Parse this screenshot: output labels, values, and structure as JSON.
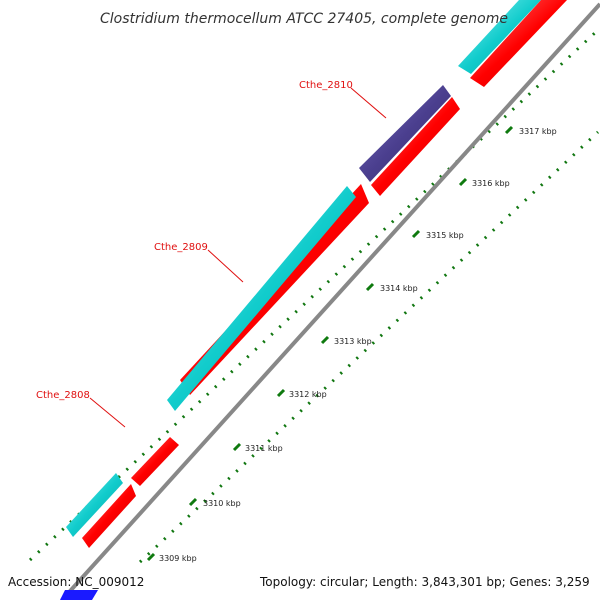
{
  "title": "Clostridium thermocellum ATCC 27405, complete genome",
  "accession": "Accession: NC_009012",
  "stats": "Topology: circular; Length: 3,843,301 bp; Genes: 3,259",
  "colors": {
    "gene": "#00cccc",
    "gene_highlight": "#4b3f8f",
    "cds": "#ff0000",
    "backbone": "#888888",
    "tick_major": "#0f7a0f",
    "tick_minor": "#117711",
    "label": "#e01010",
    "feature_blue": "#1a1aff"
  },
  "gene_labels": [
    {
      "name": "Cthe_2810"
    },
    {
      "name": "Cthe_2809"
    },
    {
      "name": "Cthe_2808"
    }
  ],
  "ticks": [
    "3309 kbp",
    "3310 kbp",
    "3311 kbp",
    "3312 kbp",
    "3313 kbp",
    "3314 kbp",
    "3315 kbp",
    "3316 kbp",
    "3317 kbp"
  ]
}
